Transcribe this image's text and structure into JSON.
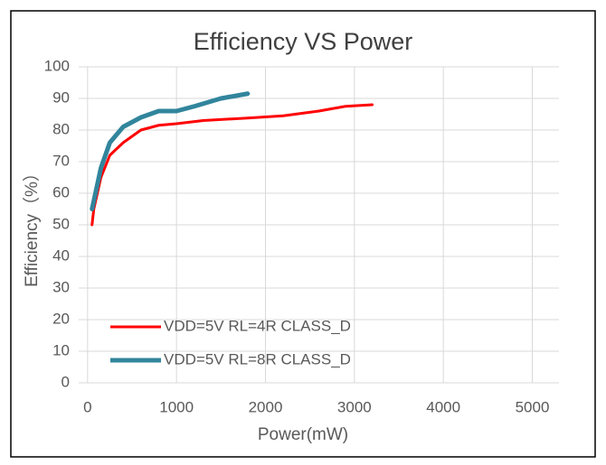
{
  "chart_data": {
    "type": "line",
    "title": "Efficiency VS Power",
    "x_label": "Power(mW)",
    "y_label": "Efficiency（%）",
    "xlim": [
      -100,
      5300
    ],
    "xticks": [
      0,
      1000,
      2000,
      3000,
      4000,
      5000
    ],
    "ylim": [
      0,
      100
    ],
    "yticks": [
      0,
      10,
      20,
      30,
      40,
      50,
      60,
      70,
      80,
      90,
      100
    ],
    "grid": true,
    "legend": "lower left",
    "series": [
      {
        "name": "VDD=5V RL=4R CLASS_D",
        "color": "#ff0000",
        "x": [
          50,
          70,
          150,
          250,
          400,
          600,
          800,
          1000,
          1300,
          1800,
          2200,
          2600,
          2900,
          3200
        ],
        "values": [
          50,
          55,
          65,
          72,
          76,
          80,
          81.5,
          82,
          83,
          83.8,
          84.5,
          86,
          87.5,
          88
        ]
      },
      {
        "name": "VDD=5V RL=8R CLASS_D",
        "color": "#31859c",
        "x": [
          50,
          150,
          250,
          400,
          600,
          800,
          1000,
          1200,
          1500,
          1800
        ],
        "values": [
          55,
          68,
          76,
          81,
          84,
          86,
          86,
          87.5,
          90,
          91.5
        ]
      }
    ]
  }
}
